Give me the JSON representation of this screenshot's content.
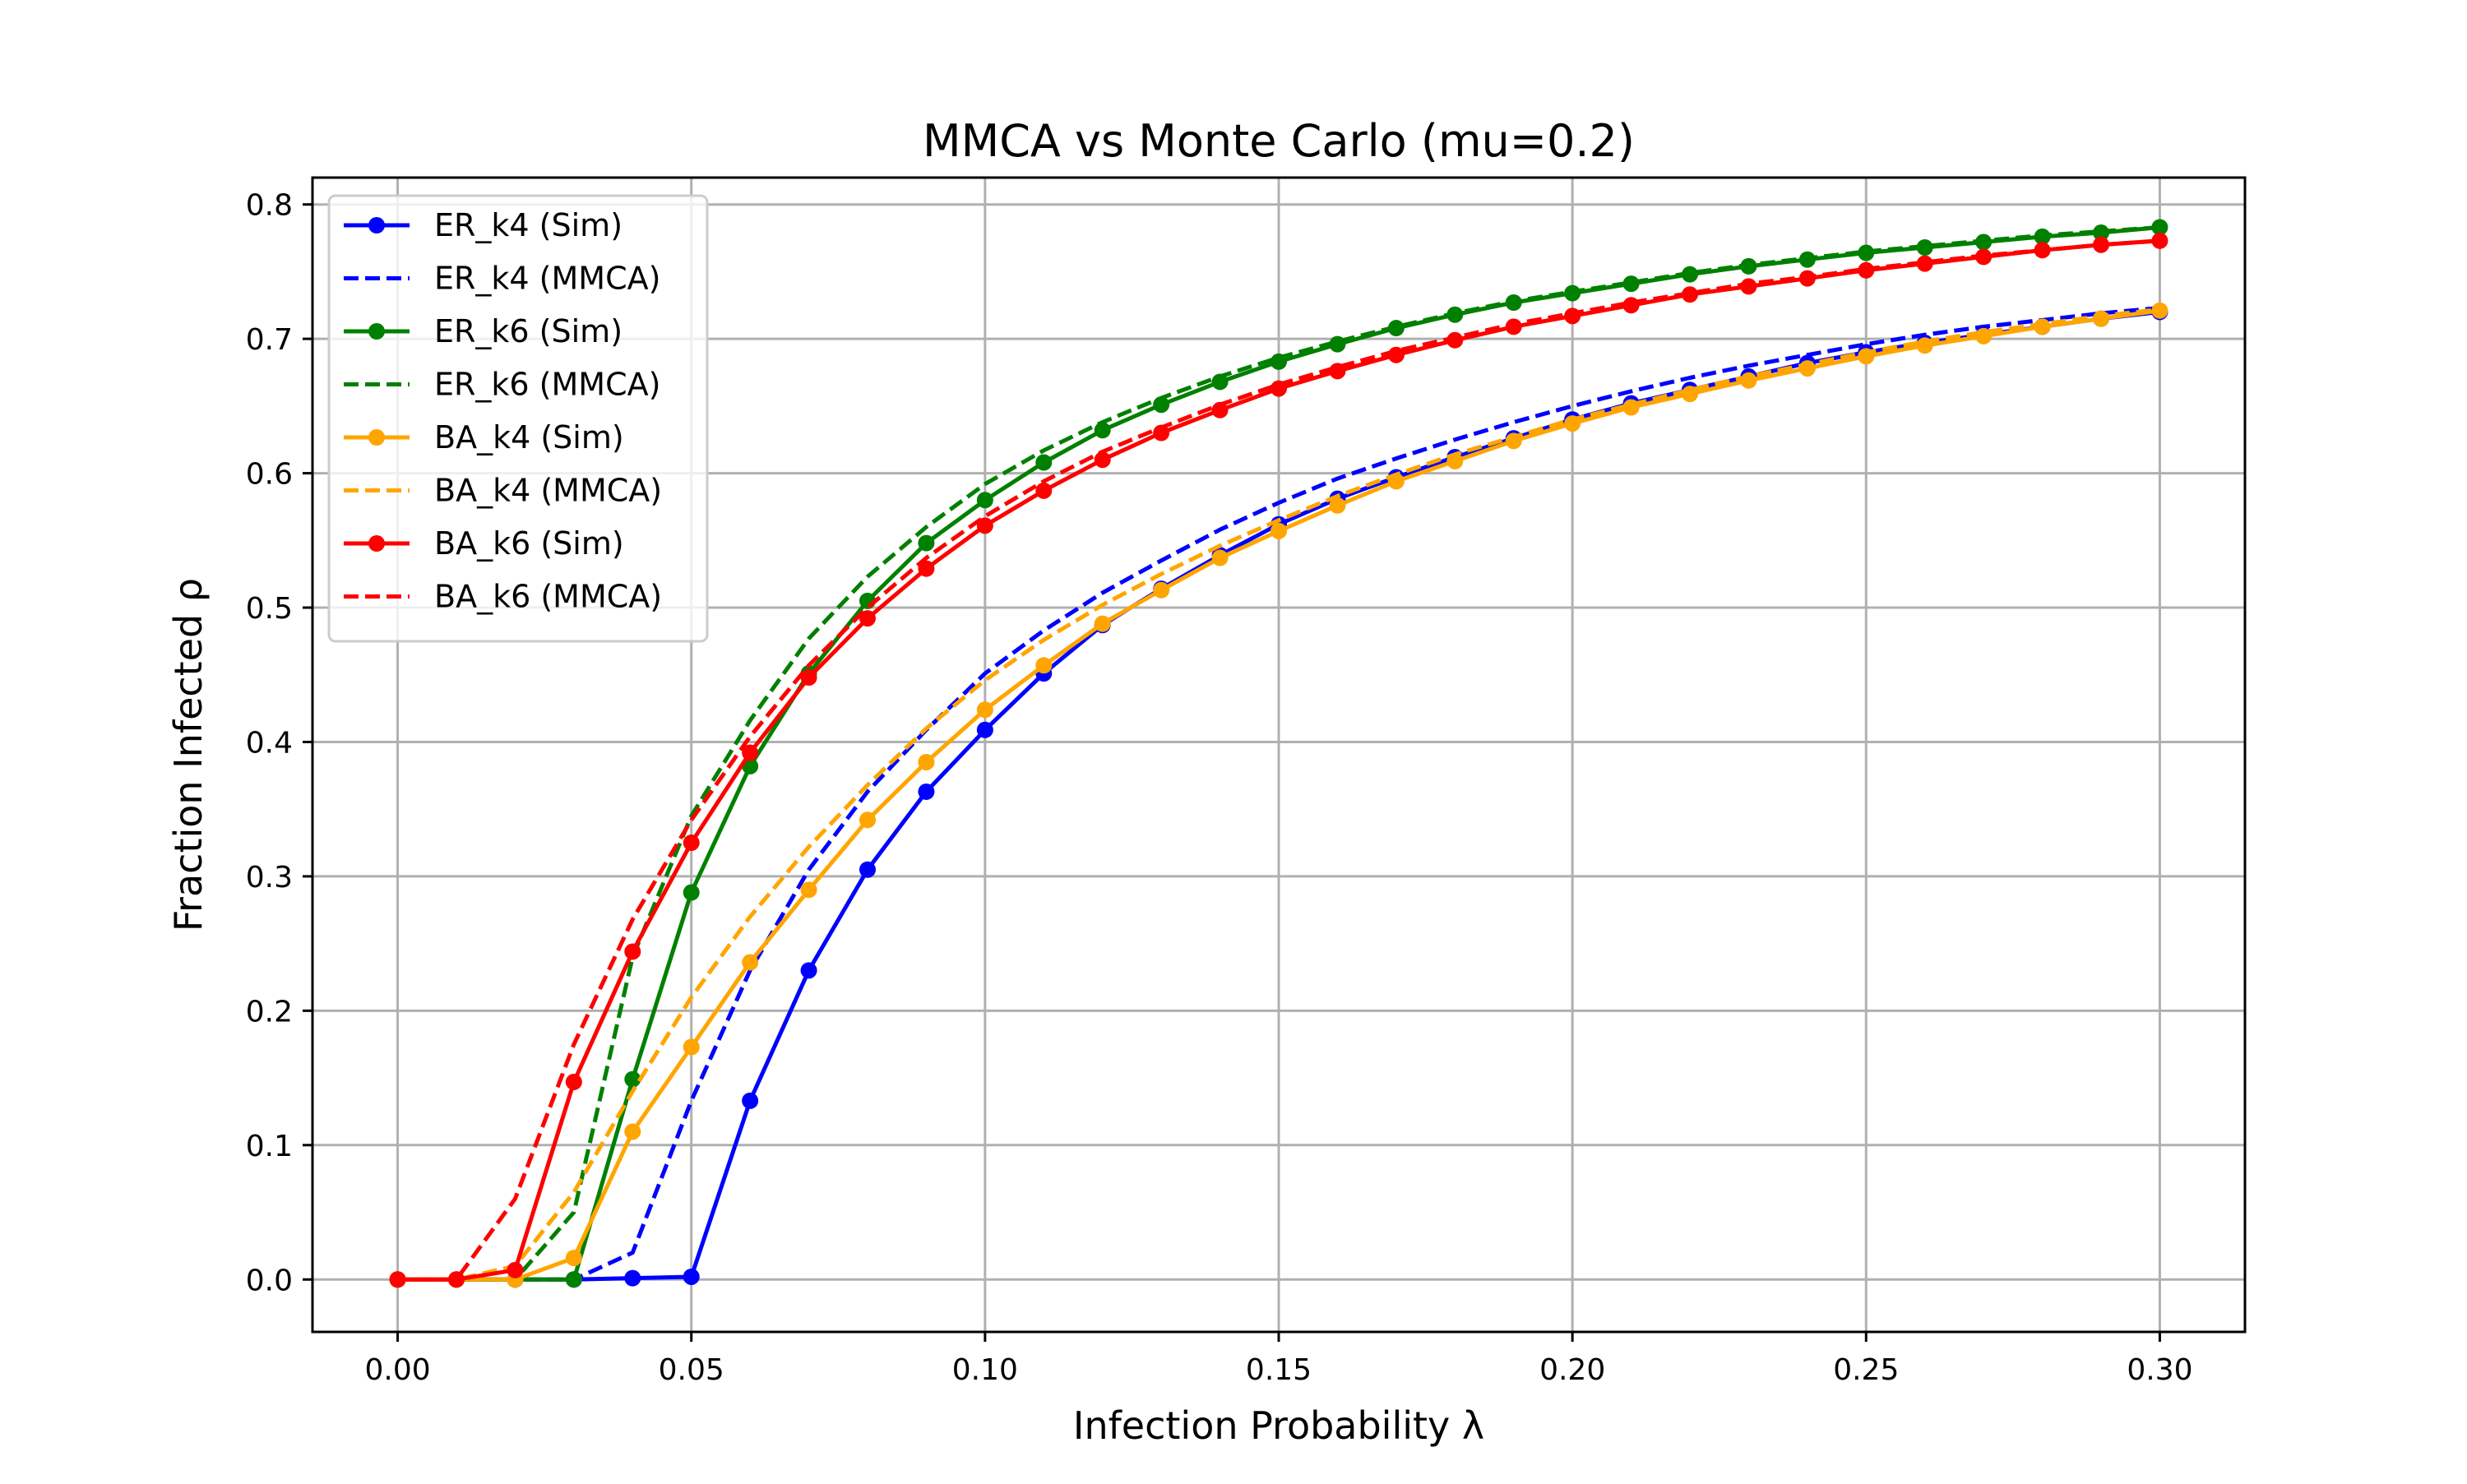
{
  "chart_data": {
    "type": "line",
    "title": "MMCA vs Monte Carlo (mu=0.2)",
    "xlabel": "Infection Probability λ",
    "ylabel": "Fraction Infected ρ",
    "xlim": [
      -0.0145,
      0.3145
    ],
    "ylim": [
      -0.039,
      0.82
    ],
    "xticks": [
      0.0,
      0.05,
      0.1,
      0.15,
      0.2,
      0.25,
      0.3
    ],
    "xtick_labels": [
      "0.00",
      "0.05",
      "0.10",
      "0.15",
      "0.20",
      "0.25",
      "0.30"
    ],
    "yticks": [
      0.0,
      0.1,
      0.2,
      0.3,
      0.4,
      0.5,
      0.6,
      0.7,
      0.8
    ],
    "ytick_labels": [
      "0.0",
      "0.1",
      "0.2",
      "0.3",
      "0.4",
      "0.5",
      "0.6",
      "0.7",
      "0.8"
    ],
    "grid": true,
    "legend_position": "top-left",
    "x": [
      0.0,
      0.01,
      0.02,
      0.03,
      0.04,
      0.05,
      0.06,
      0.07,
      0.08,
      0.09,
      0.1,
      0.11,
      0.12,
      0.13,
      0.14,
      0.15,
      0.16,
      0.17,
      0.18,
      0.19,
      0.2,
      0.21,
      0.22,
      0.23,
      0.24,
      0.25,
      0.26,
      0.27,
      0.28,
      0.29,
      0.3
    ],
    "series": [
      {
        "name": "ER_k4 (Sim)",
        "color": "#0000ff",
        "style": "solid",
        "markers": true,
        "values": [
          0.0,
          0.0,
          0.0,
          0.0,
          0.001,
          0.002,
          0.133,
          0.23,
          0.305,
          0.363,
          0.409,
          0.451,
          0.487,
          0.514,
          0.539,
          0.562,
          0.581,
          0.597,
          0.612,
          0.626,
          0.64,
          0.652,
          0.662,
          0.672,
          0.682,
          0.69,
          0.697,
          0.703,
          0.709,
          0.715,
          0.72
        ]
      },
      {
        "name": "ER_k4 (MMCA)",
        "color": "#0000ff",
        "style": "dashed",
        "markers": false,
        "values": [
          0.0,
          0.0,
          0.0,
          0.0,
          0.02,
          0.133,
          0.23,
          0.305,
          0.363,
          0.409,
          0.451,
          0.483,
          0.511,
          0.535,
          0.558,
          0.578,
          0.596,
          0.611,
          0.625,
          0.638,
          0.65,
          0.661,
          0.671,
          0.68,
          0.688,
          0.696,
          0.703,
          0.709,
          0.714,
          0.719,
          0.723
        ]
      },
      {
        "name": "ER_k6 (Sim)",
        "color": "#008000",
        "style": "solid",
        "markers": true,
        "values": [
          0.0,
          0.0,
          0.0,
          0.0,
          0.149,
          0.288,
          0.382,
          0.451,
          0.505,
          0.548,
          0.58,
          0.608,
          0.632,
          0.651,
          0.668,
          0.683,
          0.696,
          0.708,
          0.718,
          0.727,
          0.734,
          0.741,
          0.748,
          0.754,
          0.759,
          0.764,
          0.768,
          0.772,
          0.776,
          0.779,
          0.783
        ]
      },
      {
        "name": "ER_k6 (MMCA)",
        "color": "#008000",
        "style": "dashed",
        "markers": false,
        "values": [
          0.0,
          0.0,
          0.0,
          0.05,
          0.24,
          0.345,
          0.416,
          0.477,
          0.523,
          0.56,
          0.592,
          0.617,
          0.638,
          0.656,
          0.672,
          0.686,
          0.698,
          0.709,
          0.719,
          0.728,
          0.735,
          0.742,
          0.749,
          0.755,
          0.76,
          0.765,
          0.769,
          0.773,
          0.777,
          0.78,
          0.783
        ]
      },
      {
        "name": "BA_k4 (Sim)",
        "color": "#ffa500",
        "style": "solid",
        "markers": true,
        "values": [
          0.0,
          0.0,
          0.0,
          0.016,
          0.11,
          0.173,
          0.236,
          0.29,
          0.342,
          0.385,
          0.424,
          0.457,
          0.488,
          0.513,
          0.537,
          0.557,
          0.576,
          0.594,
          0.609,
          0.624,
          0.637,
          0.649,
          0.659,
          0.669,
          0.678,
          0.687,
          0.695,
          0.702,
          0.709,
          0.715,
          0.721
        ]
      },
      {
        "name": "BA_k4 (MMCA)",
        "color": "#ffa500",
        "style": "dashed",
        "markers": false,
        "values": [
          0.0,
          0.0,
          0.01,
          0.065,
          0.14,
          0.21,
          0.27,
          0.322,
          0.368,
          0.41,
          0.446,
          0.476,
          0.502,
          0.525,
          0.546,
          0.565,
          0.583,
          0.599,
          0.614,
          0.627,
          0.64,
          0.651,
          0.662,
          0.672,
          0.681,
          0.69,
          0.698,
          0.705,
          0.711,
          0.717,
          0.722
        ]
      },
      {
        "name": "BA_k6 (Sim)",
        "color": "#ff0000",
        "style": "solid",
        "markers": true,
        "values": [
          0.0,
          0.0,
          0.007,
          0.147,
          0.244,
          0.325,
          0.392,
          0.448,
          0.492,
          0.529,
          0.561,
          0.587,
          0.61,
          0.63,
          0.647,
          0.663,
          0.676,
          0.688,
          0.699,
          0.709,
          0.717,
          0.725,
          0.733,
          0.739,
          0.745,
          0.751,
          0.756,
          0.761,
          0.766,
          0.77,
          0.773
        ]
      },
      {
        "name": "BA_k6 (MMCA)",
        "color": "#ff0000",
        "style": "dashed",
        "markers": false,
        "values": [
          0.0,
          0.0,
          0.06,
          0.175,
          0.268,
          0.342,
          0.404,
          0.457,
          0.5,
          0.537,
          0.568,
          0.594,
          0.616,
          0.634,
          0.651,
          0.666,
          0.679,
          0.691,
          0.701,
          0.711,
          0.719,
          0.727,
          0.734,
          0.741,
          0.746,
          0.752,
          0.757,
          0.762,
          0.766,
          0.77,
          0.773
        ]
      }
    ]
  }
}
